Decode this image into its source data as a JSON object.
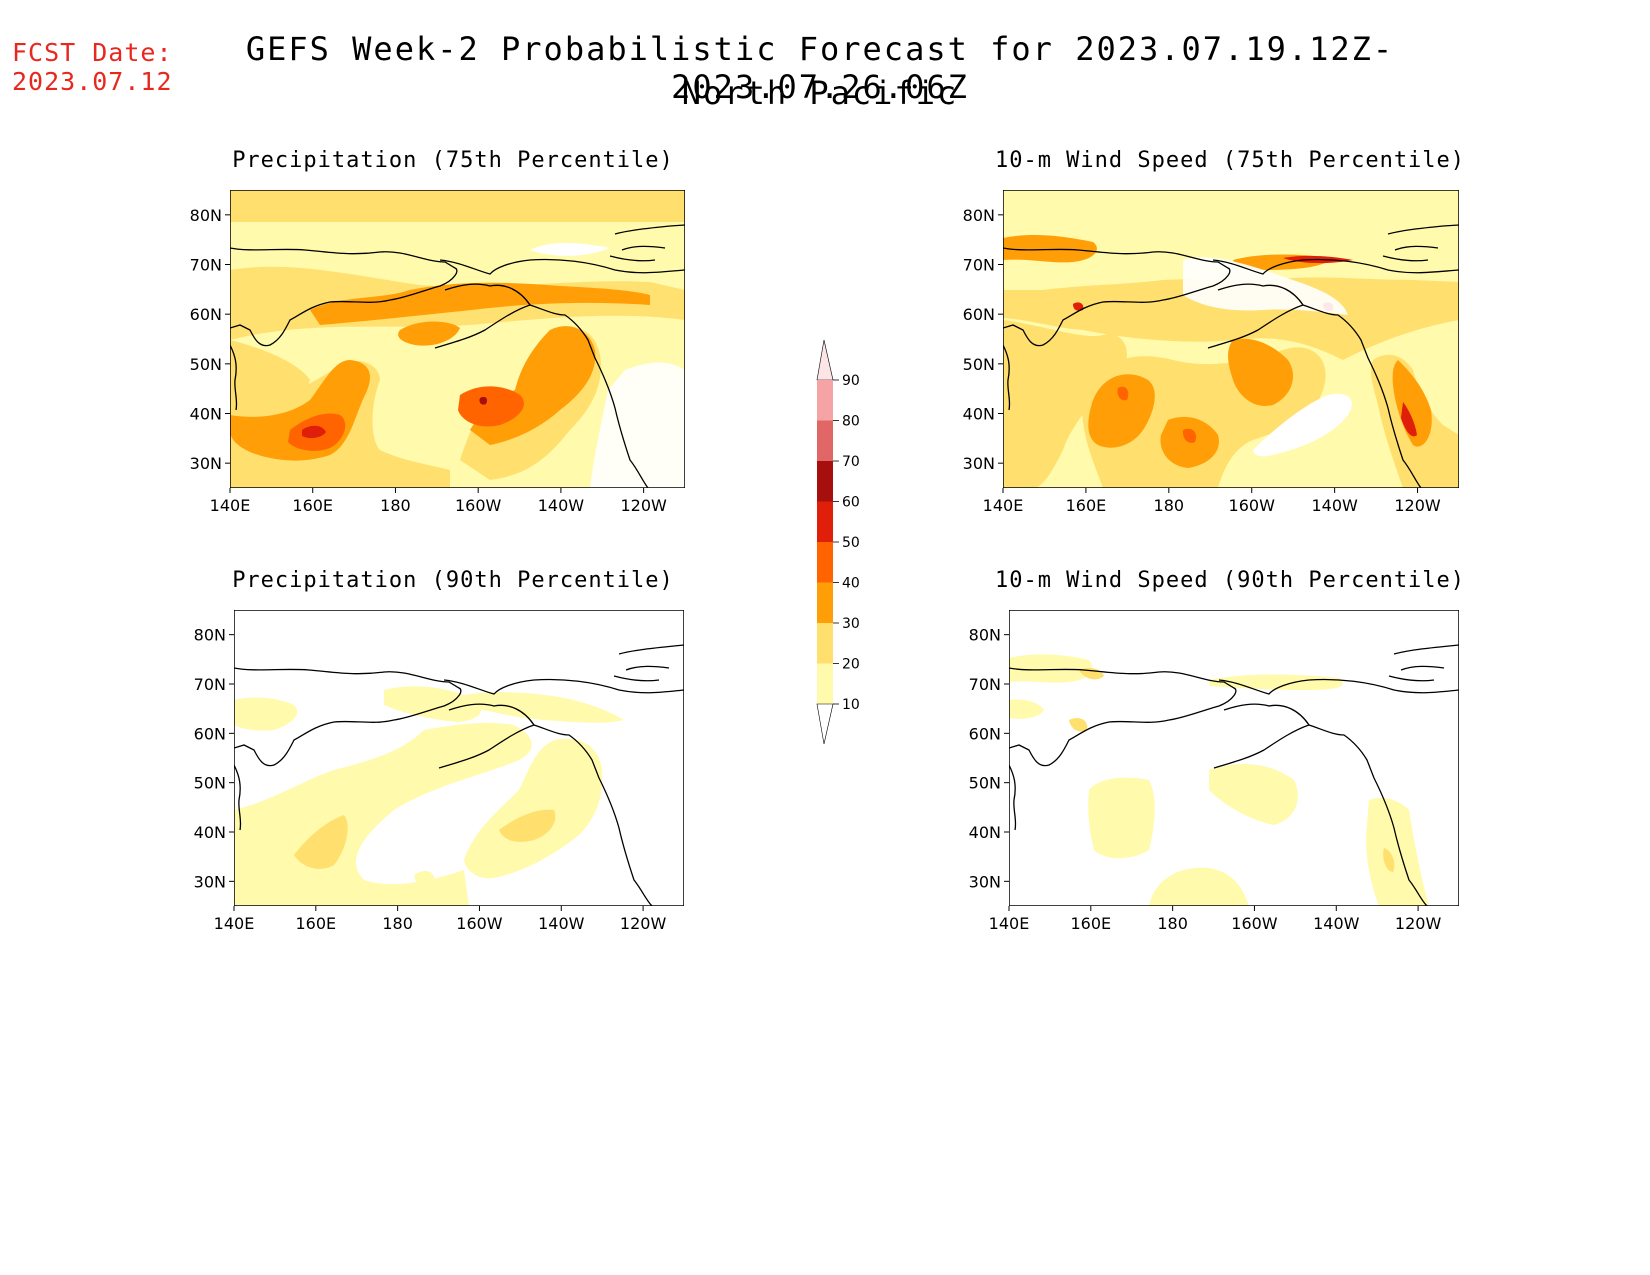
{
  "header": {
    "fcst_label": "FCST Date:",
    "fcst_date": "2023.07.12",
    "title": "GEFS Week-2 Probabilistic Forecast for 2023.07.19.12Z-2023.07.26.06Z",
    "subtitle": "North Pacific"
  },
  "axes": {
    "lon_ticks": [
      "140E",
      "160E",
      "180",
      "160W",
      "140W",
      "120W"
    ],
    "lat_ticks": [
      "80N",
      "70N",
      "60N",
      "50N",
      "40N",
      "30N"
    ]
  },
  "panels": [
    {
      "id": "precip75",
      "title": "Precipitation (75th Percentile)"
    },
    {
      "id": "wind75",
      "title": "10-m Wind Speed (75th Percentile)"
    },
    {
      "id": "precip90",
      "title": "Precipitation (90th Percentile)"
    },
    {
      "id": "wind90",
      "title": "10-m Wind Speed (90th Percentile)"
    }
  ],
  "colorbar": {
    "labels": [
      "90",
      "80",
      "70",
      "60",
      "50",
      "40",
      "30",
      "20",
      "10"
    ],
    "colors": [
      "#f6a3a6",
      "#e06766",
      "#a60f0d",
      "#e01f0b",
      "#ff6400",
      "#ff9e07",
      "#ffdf6e",
      "#fffaac"
    ]
  }
}
